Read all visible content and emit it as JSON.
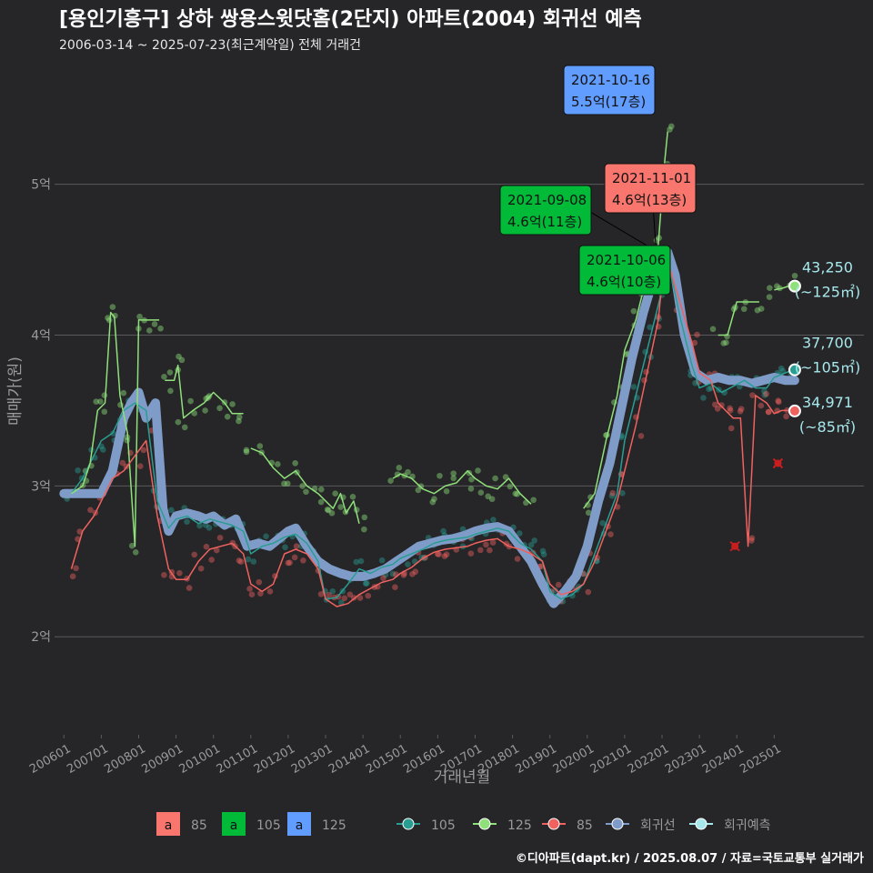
{
  "colors": {
    "background": "#262628",
    "grid": "#5a5a5c",
    "text": "#e6e6e6",
    "muted": "#9a9a9a",
    "s85": "#f0625f",
    "s105": "#2a9d92",
    "s125": "#8fe07a",
    "regression": "#7f9cc9",
    "predict": "#a6e8ec",
    "box85": "#f8766d",
    "box105": "#00ba38",
    "box125": "#619cff",
    "cross": "#c81e1e"
  },
  "chart_data": {
    "type": "line",
    "title": "[용인기흥구] 상하 쌍용스윗닷홈(2단지) 아파트(2004) 회귀선 예측",
    "subtitle": "2006-03-14 ~ 2025-07-23(최근계약일) 전체 거래건",
    "xlabel": "거래년월",
    "ylabel": "매매가(원)",
    "xlim": [
      2005.75,
      2027.4
    ],
    "ylim": [
      1.35,
      5.8
    ],
    "x_ticks": [
      {
        "x": 2006.0,
        "label": "200601"
      },
      {
        "x": 2007.0,
        "label": "200701"
      },
      {
        "x": 2008.0,
        "label": "200801"
      },
      {
        "x": 2009.0,
        "label": "200901"
      },
      {
        "x": 2010.0,
        "label": "201001"
      },
      {
        "x": 2011.0,
        "label": "201101"
      },
      {
        "x": 2012.0,
        "label": "201201"
      },
      {
        "x": 2013.0,
        "label": "201301"
      },
      {
        "x": 2014.0,
        "label": "201401"
      },
      {
        "x": 2015.0,
        "label": "201501"
      },
      {
        "x": 2016.0,
        "label": "201601"
      },
      {
        "x": 2017.0,
        "label": "201701"
      },
      {
        "x": 2018.0,
        "label": "201801"
      },
      {
        "x": 2019.0,
        "label": "201901"
      },
      {
        "x": 2020.0,
        "label": "202001"
      },
      {
        "x": 2021.0,
        "label": "202101"
      },
      {
        "x": 2022.0,
        "label": "202201"
      },
      {
        "x": 2023.0,
        "label": "202301"
      },
      {
        "x": 2024.0,
        "label": "202401"
      },
      {
        "x": 2025.0,
        "label": "202501"
      }
    ],
    "y_ticks": [
      {
        "y": 2,
        "label": "2억"
      },
      {
        "y": 3,
        "label": "3억"
      },
      {
        "y": 4,
        "label": "4억"
      },
      {
        "y": 5,
        "label": "5억"
      }
    ],
    "series": [
      {
        "name": "105",
        "color_key": "s105",
        "x": [
          2006.2,
          2006.5,
          2006.8,
          2007.0,
          2007.3,
          2007.6,
          2007.9,
          2008.2,
          2008.5,
          2008.8,
          2009.0,
          2009.3,
          2009.6,
          2009.9,
          2010.2,
          2010.5,
          2010.8,
          2011.0,
          2011.3,
          2011.6,
          2011.9,
          2012.2,
          2012.5,
          2012.8,
          2013.0,
          2013.3,
          2013.6,
          2013.9,
          2014.2,
          2014.5,
          2014.8,
          2015.0,
          2015.3,
          2015.6,
          2015.9,
          2016.2,
          2016.5,
          2016.8,
          2017.0,
          2017.3,
          2017.6,
          2017.9,
          2018.2,
          2018.5,
          2018.8,
          2019.0,
          2019.3,
          2019.6,
          2019.9,
          2020.2,
          2020.5,
          2020.8,
          2021.0,
          2021.3,
          2021.6,
          2021.8,
          2022.0,
          2022.2,
          2022.5,
          2022.8,
          2023.0,
          2023.3,
          2023.6,
          2023.9,
          2024.2,
          2024.5,
          2024.8,
          2025.0,
          2025.3,
          2025.5
        ],
        "values": [
          2.95,
          3.05,
          3.2,
          3.3,
          3.35,
          3.5,
          3.55,
          3.5,
          2.9,
          2.72,
          2.78,
          2.8,
          2.75,
          2.78,
          2.76,
          2.74,
          2.7,
          2.55,
          2.6,
          2.62,
          2.66,
          2.68,
          2.62,
          2.5,
          2.25,
          2.26,
          2.35,
          2.45,
          2.42,
          2.46,
          2.48,
          2.52,
          2.55,
          2.58,
          2.62,
          2.64,
          2.65,
          2.66,
          2.68,
          2.7,
          2.72,
          2.7,
          2.62,
          2.58,
          2.5,
          2.3,
          2.25,
          2.28,
          2.35,
          2.55,
          2.75,
          2.95,
          3.3,
          3.6,
          3.9,
          4.1,
          4.3,
          4.45,
          4.1,
          3.8,
          3.65,
          3.68,
          3.62,
          3.66,
          3.7,
          3.65,
          3.65,
          3.72,
          3.75,
          3.77
        ]
      },
      {
        "name": "125",
        "color_key": "s125",
        "segments": [
          {
            "x": [
              2006.2,
              2006.5,
              2006.7,
              2006.9,
              2007.1,
              2007.25,
              2007.35,
              2007.5,
              2007.7,
              2007.9,
              2008.0,
              2008.3,
              2008.55
            ],
            "values": [
              2.95,
              3.0,
              3.15,
              3.5,
              3.55,
              4.15,
              4.12,
              3.6,
              3.35,
              2.6,
              4.1,
              4.1,
              4.1
            ]
          },
          {
            "x": [
              2008.7,
              2008.95,
              2009.05,
              2009.2,
              2009.45,
              2009.75,
              2010.0,
              2010.3,
              2010.5,
              2010.8
            ],
            "values": [
              3.7,
              3.7,
              3.8,
              3.45,
              3.5,
              3.55,
              3.62,
              3.55,
              3.48,
              3.48
            ]
          },
          {
            "x": [
              2011.0,
              2011.3,
              2011.6,
              2011.9,
              2012.2,
              2012.5,
              2012.8,
              2013.0,
              2013.2,
              2013.4,
              2013.55,
              2013.75,
              2013.9
            ],
            "values": [
              3.25,
              3.22,
              3.12,
              3.05,
              3.1,
              3.0,
              2.95,
              2.9,
              2.85,
              2.95,
              2.82,
              2.9,
              2.75
            ]
          },
          {
            "x": [
              2014.8,
              2015.0,
              2015.3,
              2015.6,
              2015.9,
              2016.2,
              2016.5,
              2016.8,
              2017.0,
              2017.3,
              2017.6,
              2017.9,
              2018.2,
              2018.5
            ],
            "values": [
              3.05,
              3.08,
              3.05,
              2.98,
              2.95,
              3.0,
              3.02,
              3.1,
              3.05,
              3.0,
              2.98,
              3.05,
              2.95,
              2.88
            ]
          },
          {
            "x": [
              2019.9,
              2020.2,
              2020.5,
              2020.8,
              2021.0,
              2021.3,
              2021.5,
              2021.7,
              2021.9,
              2022.05,
              2022.15
            ],
            "values": [
              2.85,
              2.95,
              3.3,
              3.6,
              3.9,
              4.1,
              4.3,
              4.5,
              4.6,
              5.1,
              5.35
            ]
          },
          {
            "x": [
              2023.5,
              2023.75,
              2024.0,
              2024.3,
              2024.6
            ],
            "values": [
              4.0,
              4.0,
              4.22,
              4.22,
              4.22
            ]
          },
          {
            "x": [
              2025.0,
              2025.2,
              2025.45
            ],
            "values": [
              4.3,
              4.31,
              4.33
            ]
          }
        ]
      },
      {
        "name": "85",
        "color_key": "s85",
        "x": [
          2006.2,
          2006.5,
          2006.8,
          2007.0,
          2007.3,
          2007.6,
          2007.9,
          2008.2,
          2008.5,
          2008.8,
          2009.0,
          2009.3,
          2009.6,
          2009.9,
          2010.2,
          2010.5,
          2010.8,
          2011.0,
          2011.3,
          2011.6,
          2011.9,
          2012.2,
          2012.5,
          2012.8,
          2013.0,
          2013.3,
          2013.6,
          2013.9,
          2014.2,
          2014.5,
          2014.8,
          2015.0,
          2015.3,
          2015.6,
          2015.9,
          2016.2,
          2016.5,
          2016.8,
          2017.0,
          2017.3,
          2017.6,
          2017.9,
          2018.2,
          2018.5,
          2018.8,
          2019.0,
          2019.3,
          2019.6,
          2019.9,
          2020.2,
          2020.5,
          2020.8,
          2021.0,
          2021.3,
          2021.6,
          2021.9,
          2022.0,
          2022.2,
          2022.5,
          2022.8,
          2023.0,
          2023.3,
          2023.5,
          2023.7,
          2023.9,
          2024.1,
          2024.3,
          2024.5,
          2024.8,
          2025.0,
          2025.2,
          2025.45
        ],
        "values": [
          2.45,
          2.7,
          2.8,
          2.9,
          3.05,
          3.1,
          3.2,
          3.3,
          2.8,
          2.45,
          2.38,
          2.38,
          2.5,
          2.58,
          2.6,
          2.62,
          2.55,
          2.35,
          2.3,
          2.35,
          2.55,
          2.58,
          2.55,
          2.45,
          2.25,
          2.2,
          2.22,
          2.28,
          2.32,
          2.36,
          2.38,
          2.42,
          2.46,
          2.52,
          2.56,
          2.58,
          2.59,
          2.6,
          2.62,
          2.64,
          2.65,
          2.6,
          2.58,
          2.55,
          2.5,
          2.35,
          2.28,
          2.3,
          2.35,
          2.5,
          2.7,
          2.9,
          3.1,
          3.4,
          3.75,
          4.1,
          4.35,
          4.45,
          4.2,
          3.95,
          3.75,
          3.7,
          3.55,
          3.5,
          3.45,
          3.45,
          2.6,
          3.6,
          3.55,
          3.48,
          3.5,
          3.5
        ]
      },
      {
        "name": "회귀선",
        "color_key": "regression",
        "x": [
          2006.0,
          2006.5,
          2007.0,
          2007.3,
          2007.6,
          2007.8,
          2008.0,
          2008.2,
          2008.45,
          2008.65,
          2008.8,
          2009.0,
          2009.3,
          2009.6,
          2009.8,
          2010.0,
          2010.3,
          2010.6,
          2010.9,
          2011.2,
          2011.5,
          2011.8,
          2012.0,
          2012.2,
          2012.5,
          2012.8,
          2013.1,
          2013.4,
          2013.7,
          2014.0,
          2014.3,
          2014.6,
          2014.9,
          2015.2,
          2015.5,
          2015.8,
          2016.1,
          2016.4,
          2016.7,
          2017.0,
          2017.3,
          2017.6,
          2017.9,
          2018.2,
          2018.5,
          2018.8,
          2019.1,
          2019.4,
          2019.7,
          2020.0,
          2020.3,
          2020.6,
          2020.9,
          2021.2,
          2021.5,
          2021.8,
          2022.0,
          2022.15,
          2022.35,
          2022.6,
          2022.9,
          2023.2,
          2023.5,
          2023.8,
          2024.1,
          2024.4,
          2024.7,
          2025.0,
          2025.3,
          2025.55
        ],
        "values": [
          2.95,
          2.95,
          2.95,
          3.1,
          3.45,
          3.55,
          3.62,
          3.45,
          3.55,
          2.85,
          2.7,
          2.8,
          2.82,
          2.8,
          2.78,
          2.8,
          2.74,
          2.78,
          2.6,
          2.62,
          2.6,
          2.66,
          2.7,
          2.72,
          2.6,
          2.5,
          2.45,
          2.42,
          2.4,
          2.4,
          2.42,
          2.45,
          2.5,
          2.55,
          2.6,
          2.62,
          2.64,
          2.65,
          2.67,
          2.7,
          2.72,
          2.73,
          2.7,
          2.6,
          2.5,
          2.35,
          2.22,
          2.3,
          2.4,
          2.6,
          2.9,
          3.15,
          3.5,
          3.85,
          4.15,
          4.4,
          4.5,
          4.55,
          4.4,
          4.0,
          3.75,
          3.7,
          3.72,
          3.7,
          3.7,
          3.68,
          3.7,
          3.72,
          3.7,
          3.7
        ]
      }
    ],
    "crosses": [
      {
        "x": 2023.95,
        "y": 2.6
      },
      {
        "x": 2025.1,
        "y": 3.15
      }
    ],
    "annotations": [
      {
        "date": "2021-10-16",
        "value": "5.5억(17층)",
        "x": 2021.79,
        "y": 5.5,
        "fill_key": "box125"
      },
      {
        "date": "2021-11-01",
        "value": "4.6억(13층)",
        "x": 2021.83,
        "y": 4.6,
        "fill_key": "box85"
      },
      {
        "date": "2021-09-08",
        "value": "4.6억(11층)",
        "x": 2021.69,
        "y": 4.58,
        "fill_key": "box105"
      },
      {
        "date": "2021-10-06",
        "value": "4.6억(10층)",
        "x": 2021.76,
        "y": 4.55,
        "fill_key": "box105"
      }
    ],
    "end_labels": [
      {
        "value": "43,250",
        "area": "(~125㎡)",
        "x": 2025.55,
        "y": 4.325,
        "color_key": "s125"
      },
      {
        "value": "37,700",
        "area": "(~105㎡)",
        "x": 2025.55,
        "y": 3.77,
        "color_key": "s105"
      },
      {
        "value": "34,971",
        "area": "(~85㎡)",
        "x": 2025.55,
        "y": 3.497,
        "color_key": "s85"
      }
    ],
    "legend_boxes": [
      {
        "glyph": "a",
        "label": "85",
        "fill_key": "box85"
      },
      {
        "glyph": "a",
        "label": "105",
        "fill_key": "box105"
      },
      {
        "glyph": "a",
        "label": "125",
        "fill_key": "box125"
      }
    ],
    "legend_lines": [
      {
        "label": "105",
        "color_key": "s105"
      },
      {
        "label": "125",
        "color_key": "s125"
      },
      {
        "label": "85",
        "color_key": "s85"
      },
      {
        "label": "회귀선",
        "color_key": "regression"
      },
      {
        "label": "회귀예측",
        "color_key": "predict"
      }
    ]
  },
  "footer": "©디아파트(dapt.kr) / 2025.08.07 / 자료=국토교통부 실거래가"
}
